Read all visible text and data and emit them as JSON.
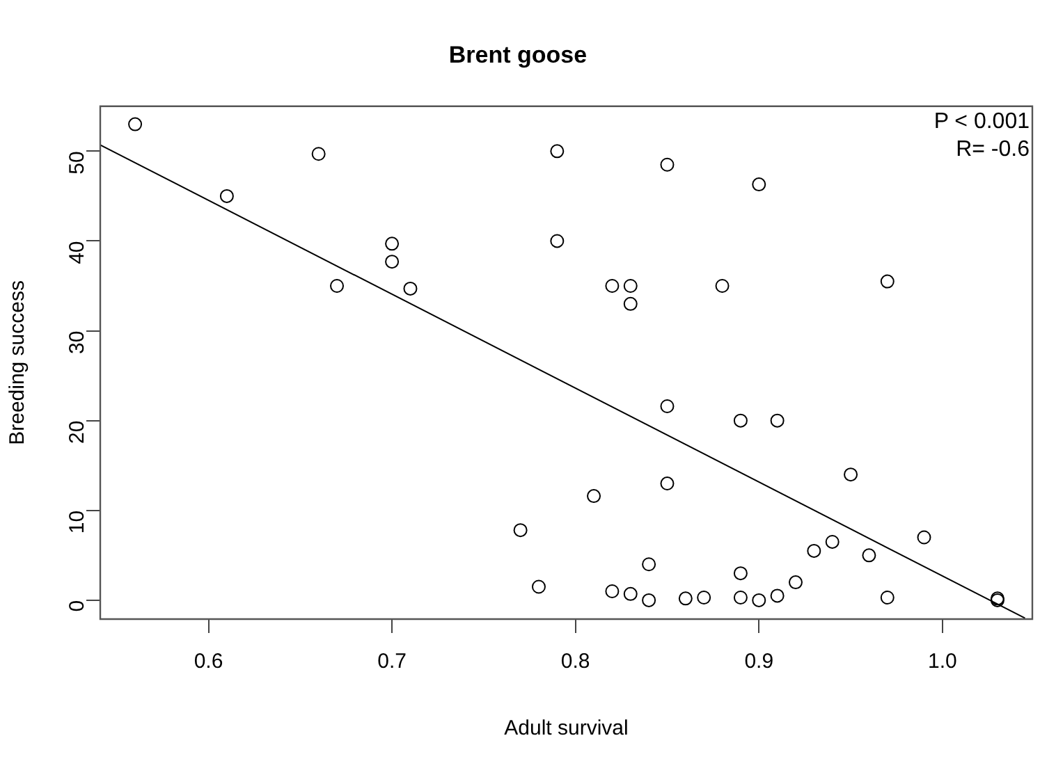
{
  "chart_data": {
    "type": "scatter",
    "title": "Brent goose",
    "xlabel": "Adult survival",
    "ylabel": "Breeding success",
    "xlim": [
      0.541,
      1.049
    ],
    "xticks": [
      0.6,
      0.7,
      0.8,
      0.9,
      {
        "value": 1.0,
        "label": "1.0"
      }
    ],
    "ylim": [
      -2.1,
      55
    ],
    "yticks": [
      0,
      10,
      20,
      30,
      40,
      50
    ],
    "grid": false,
    "legend": false,
    "marker": "circle",
    "annotations": [
      "P < 0.001",
      "R= -0.6"
    ],
    "series": [
      {
        "color": "#000000",
        "x": [
          0.56,
          0.61,
          0.66,
          0.67,
          0.7,
          0.7,
          0.71,
          0.77,
          0.78,
          0.79,
          0.79,
          0.81,
          0.82,
          0.82,
          0.83,
          0.83,
          0.83,
          0.84,
          0.84,
          0.85,
          0.85,
          0.85,
          0.86,
          0.87,
          0.88,
          0.89,
          0.89,
          0.89,
          0.9,
          0.9,
          0.91,
          0.91,
          0.92,
          0.93,
          0.94,
          0.95,
          0.96,
          0.97,
          0.97,
          0.99,
          1.03,
          1.03
        ],
        "values": [
          53,
          45,
          49.7,
          35,
          39.7,
          37.7,
          34.7,
          7.8,
          1.5,
          50,
          40,
          11.6,
          35,
          1,
          35,
          33,
          0.7,
          4,
          0,
          48.5,
          21.6,
          13,
          0.2,
          0.3,
          35,
          20,
          3,
          0.3,
          46.3,
          0,
          20,
          0.5,
          2,
          5.5,
          6.5,
          14,
          5,
          35.5,
          0.3,
          7,
          0.2,
          0
        ]
      },
      {
        "type": "line",
        "color": "#000000",
        "marker": "none",
        "x": [
          0.541,
          1.045
        ],
        "values": [
          50.7,
          -2
        ]
      }
    ]
  }
}
